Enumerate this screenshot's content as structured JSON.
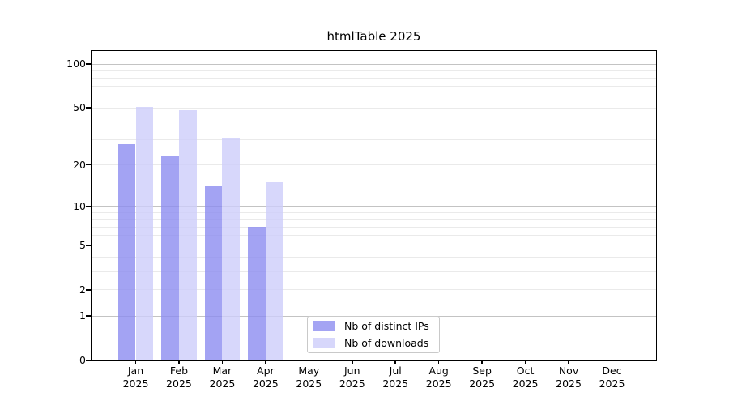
{
  "title": "htmlTable 2025",
  "chart_data": {
    "type": "bar",
    "title": "htmlTable 2025",
    "scale": "log1p",
    "ylim": [
      0,
      100
    ],
    "grid": "on",
    "legend_position": "bottom-center-inside",
    "categories": [
      "Jan",
      "Feb",
      "Mar",
      "Apr",
      "May",
      "Jun",
      "Jul",
      "Aug",
      "Sep",
      "Oct",
      "Nov",
      "Dec"
    ],
    "x_year_label": "2025",
    "y_tick_labels": [
      0,
      1,
      2,
      5,
      10,
      20,
      50,
      100
    ],
    "y_gridlines_decade": [
      1,
      10,
      100
    ],
    "y_gridlines_minor": [
      2,
      3,
      4,
      5,
      6,
      7,
      8,
      9,
      20,
      30,
      40,
      50,
      60,
      70,
      80,
      90
    ],
    "series": [
      {
        "name": "Nb of distinct IPs",
        "color": "rgba(140,140,240,0.8)",
        "legend_swatch_color": "#a4a4f3",
        "values": [
          28,
          23,
          14,
          7,
          0,
          0,
          0,
          0,
          0,
          0,
          0,
          0
        ]
      },
      {
        "name": "Nb of downloads",
        "color": "rgba(205,205,250,0.8)",
        "legend_swatch_color": "#d7d7fb",
        "values": [
          51,
          48,
          31,
          15,
          0,
          0,
          0,
          0,
          0,
          0,
          0,
          0
        ]
      }
    ],
    "colors": {
      "grid_decade": "#c3c3c3",
      "grid_minor": "#eaeaea",
      "axis": "#000000"
    }
  }
}
